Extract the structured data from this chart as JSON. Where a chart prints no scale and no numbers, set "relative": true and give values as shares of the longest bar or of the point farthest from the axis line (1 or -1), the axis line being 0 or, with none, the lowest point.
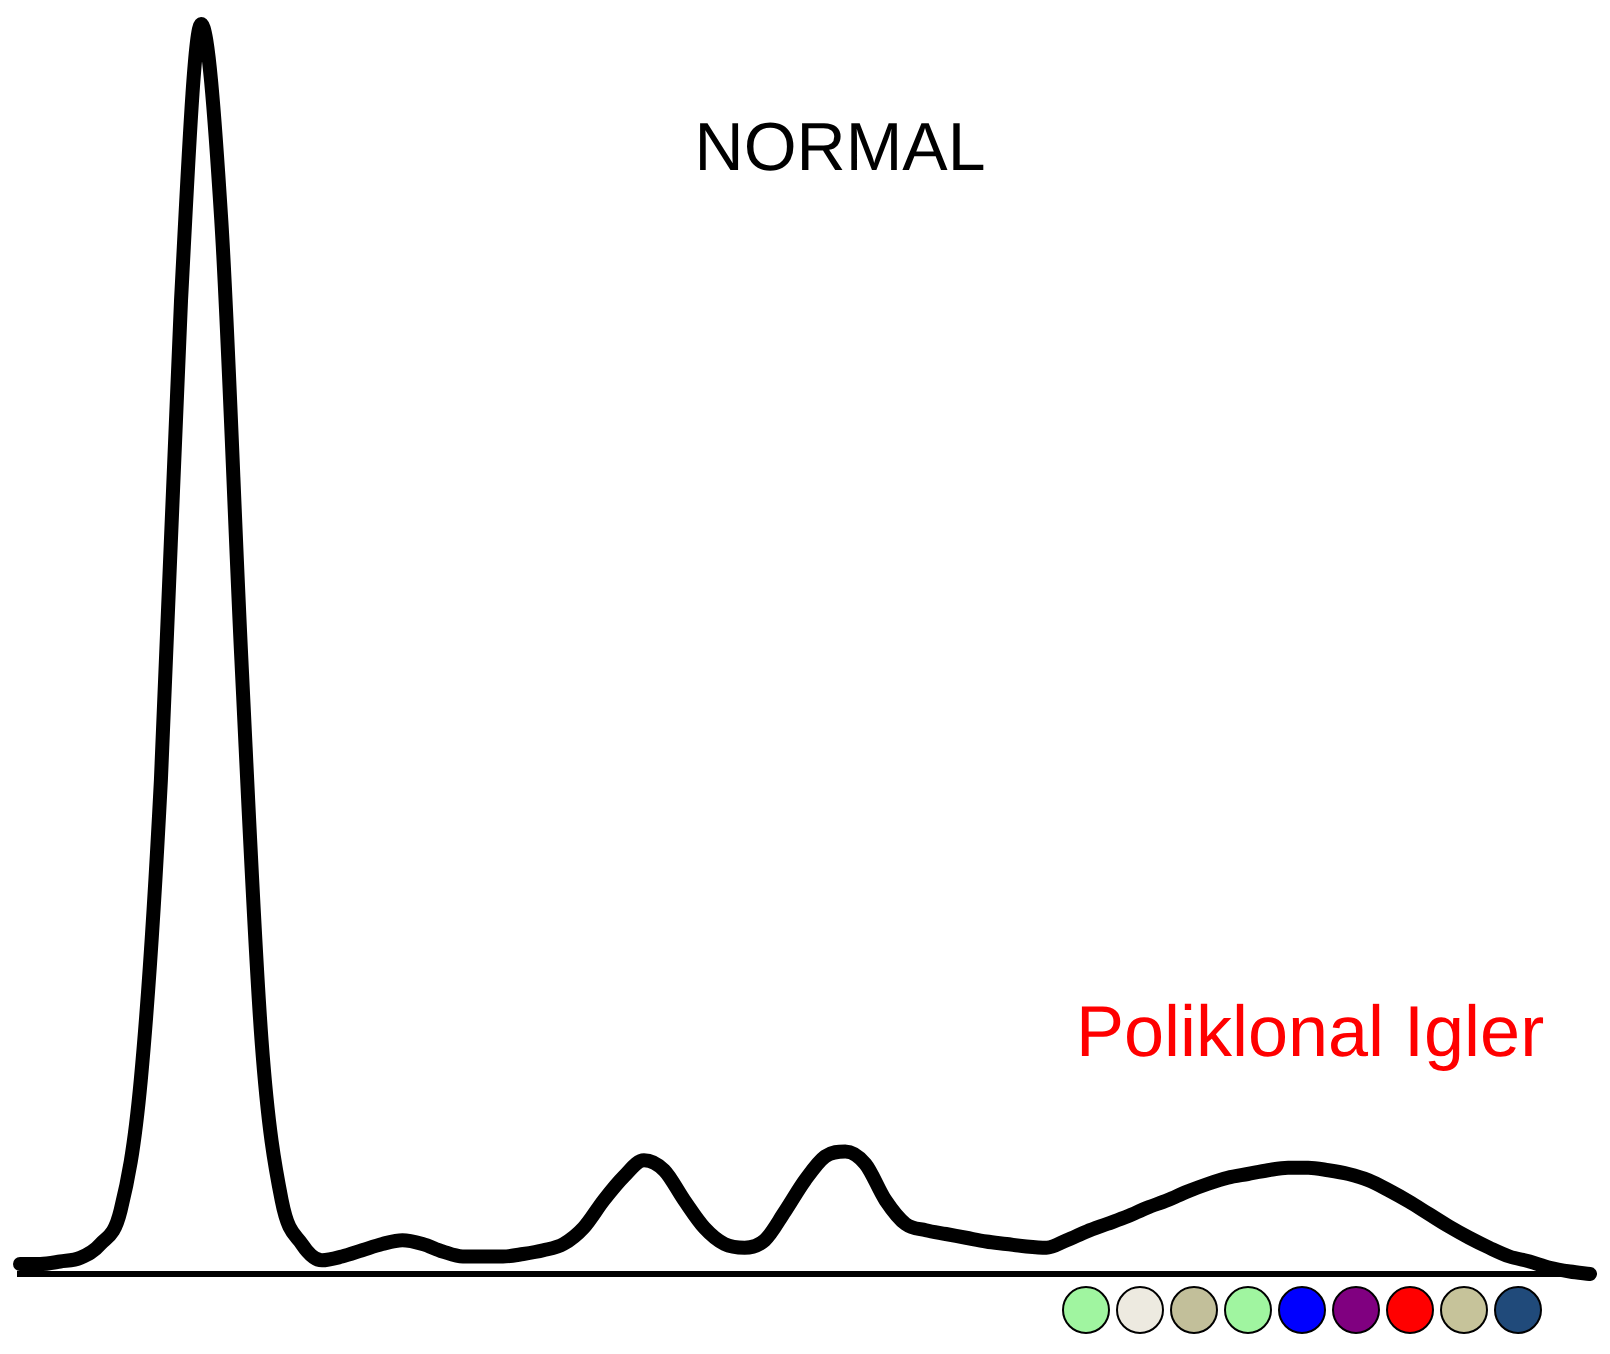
{
  "chart_data": {
    "type": "line",
    "relative": true,
    "tick_labels": false,
    "grid": false,
    "legend": false,
    "marker": "none",
    "line_style": "solid",
    "annotations": [
      "NORMAL",
      "Poliklonal Igler"
    ],
    "categories": [
      null,
      null,
      null,
      null,
      null,
      null,
      null,
      null,
      null,
      null,
      null,
      null,
      null,
      null,
      null,
      null,
      null,
      null,
      null,
      null,
      null,
      null,
      null,
      null,
      null,
      null,
      null,
      null,
      null,
      null,
      null,
      null,
      null,
      null,
      null,
      null,
      null,
      null,
      null,
      null,
      null,
      null,
      null,
      null,
      null,
      null,
      null,
      null,
      null,
      null,
      null,
      null,
      null,
      null,
      null,
      null,
      null,
      null,
      null,
      null,
      null,
      null,
      null,
      null,
      null,
      null,
      null,
      null,
      null,
      null,
      null,
      null,
      null,
      null,
      null,
      null,
      null,
      null,
      null
    ],
    "series": [
      {
        "color": "#000000",
        "values": [
          0.008,
          0.008,
          0.01,
          0.013,
          0.024,
          0.051,
          0.155,
          0.395,
          0.779,
          1,
          0.843,
          0.491,
          0.187,
          0.059,
          0.024,
          0.011,
          0.014,
          0.019,
          0.024,
          0.027,
          0.024,
          0.018,
          0.014,
          0.014,
          0.014,
          0.016,
          0.019,
          0.024,
          0.037,
          0.059,
          0.078,
          0.091,
          0.083,
          0.059,
          0.037,
          0.024,
          0.021,
          0.027,
          0.05,
          0.075,
          0.094,
          0.098,
          0.088,
          0.059,
          0.04,
          0.035,
          0.032,
          0.029,
          0.026,
          0.024,
          0.022,
          0.021,
          0.027,
          0.034,
          0.04,
          0.046,
          0.053,
          0.059,
          0.066,
          0.072,
          0.077,
          0.08,
          0.083,
          0.085,
          0.085,
          0.083,
          0.08,
          0.075,
          0.067,
          0.058,
          0.048,
          0.038,
          0.029,
          0.021,
          0.014,
          0.01,
          0.005,
          0.002,
          0
        ]
      }
    ]
  }
}
